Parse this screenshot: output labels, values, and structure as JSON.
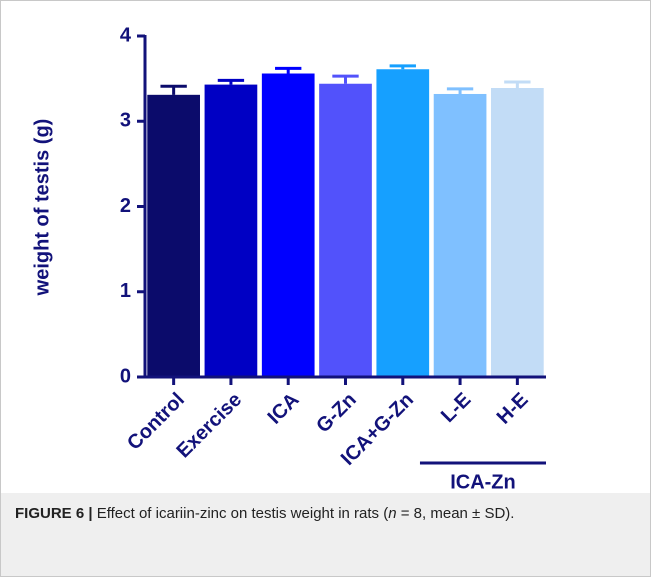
{
  "chart_data": {
    "type": "bar",
    "ylabel": "weight of testis (g)",
    "categories": [
      "Control",
      "Exercise",
      "ICA",
      "G-Zn",
      "ICA+G-Zn",
      "L-E",
      "H-E"
    ],
    "values": [
      3.31,
      3.43,
      3.56,
      3.44,
      3.61,
      3.32,
      3.39
    ],
    "errors": [
      0.1,
      0.05,
      0.06,
      0.09,
      0.04,
      0.06,
      0.07
    ],
    "colors": [
      "#0b0b6b",
      "#0000c4",
      "#0000ff",
      "#5252fb",
      "#16a0ff",
      "#7fc0ff",
      "#c2dcf6"
    ],
    "group_label": "ICA-Zn",
    "ylim": [
      0,
      4
    ],
    "yticks": [
      0,
      1,
      2,
      3,
      4
    ]
  },
  "caption": {
    "label": "FIGURE 6 |",
    "text_before": "Effect of icariin-zinc on testis weight in rats (",
    "italic": "n",
    "text_after": " = 8, mean ± SD)."
  }
}
